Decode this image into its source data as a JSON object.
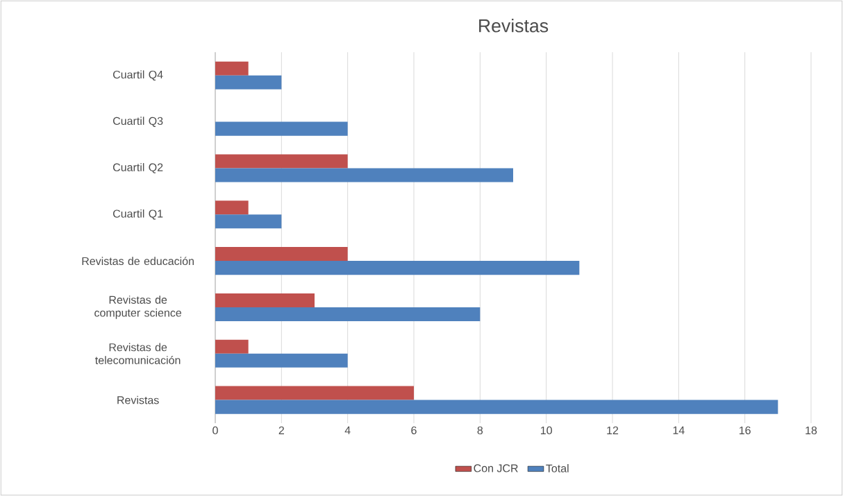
{
  "chart_data": {
    "type": "bar",
    "orientation": "horizontal",
    "title": "Revistas",
    "categories": [
      "Cuartil Q4",
      "Cuartil Q3",
      "Cuartil Q2",
      "Cuartil Q1",
      "Revistas de educación",
      "Revistas de computer science",
      "Revistas de telecomunicación",
      "Revistas"
    ],
    "series": [
      {
        "name": "Con JCR",
        "color": "#c0504d",
        "values": [
          1,
          0,
          4,
          1,
          4,
          3,
          1,
          6
        ]
      },
      {
        "name": "Total",
        "color": "#4f81bd",
        "values": [
          2,
          4,
          9,
          2,
          11,
          8,
          4,
          17
        ]
      }
    ],
    "xlim": [
      0,
      18
    ],
    "xticks": [
      0,
      2,
      4,
      6,
      8,
      10,
      12,
      14,
      16,
      18
    ],
    "grid": "x",
    "legend": "bottom"
  }
}
